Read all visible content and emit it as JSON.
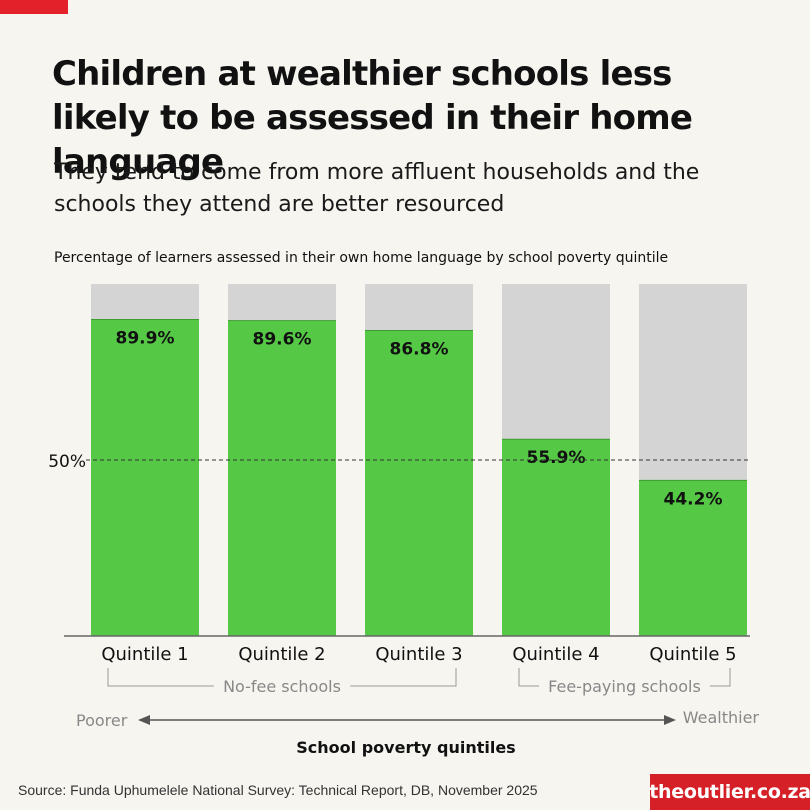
{
  "header": {
    "title": "Children at wealthier schools less likely to be assessed in their home language",
    "subtitle": "They tend to come from more affluent households and the schools they attend are better resourced",
    "caption": "Percentage of learners assessed in their own home language by school poverty quintile"
  },
  "chart_data": {
    "type": "bar",
    "categories": [
      "Quintile 1",
      "Quintile 2",
      "Quintile 3",
      "Quintile 4",
      "Quintile 5"
    ],
    "values": [
      89.9,
      89.6,
      86.8,
      55.9,
      44.2
    ],
    "value_labels": [
      "89.9%",
      "89.6%",
      "86.8%",
      "55.9%",
      "44.2%"
    ],
    "ylim": [
      0,
      100
    ],
    "reference_line": {
      "value": 50,
      "label": "50%"
    },
    "groups": [
      {
        "label": "No-fee schools",
        "from": 0,
        "to": 2
      },
      {
        "label": "Fee-paying schools",
        "from": 3,
        "to": 4
      }
    ],
    "axis": {
      "left_label": "Poorer",
      "right_label": "Wealthier",
      "xlabel": "School poverty quintiles"
    },
    "colors": {
      "value": "#55c945",
      "remainder": "#d4d4d4",
      "axis": "#555555"
    }
  },
  "footer": {
    "source": "Source: Funda Uphumelele National Survey: Technical Report, DB, November 2025",
    "brand": "theoutlier.co.za",
    "brand_color": "#d62027"
  }
}
